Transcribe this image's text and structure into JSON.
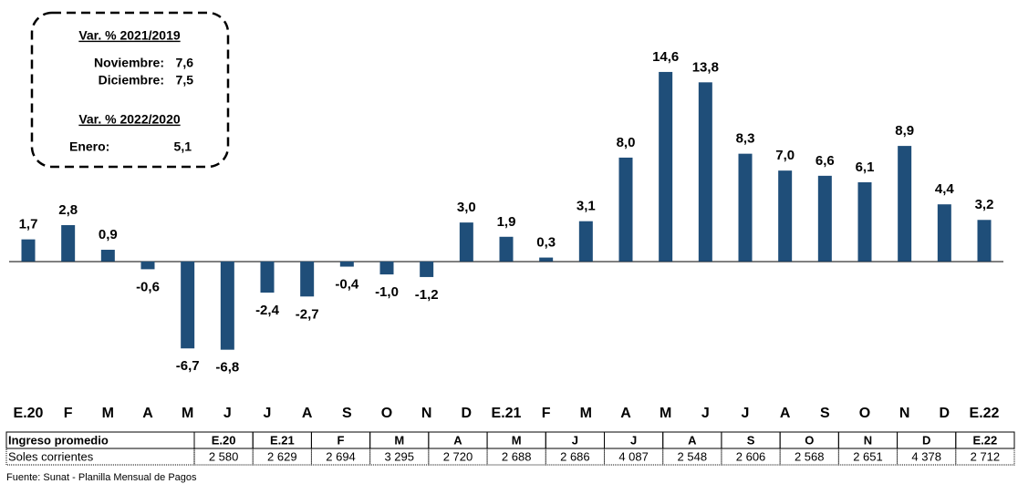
{
  "chart_data": {
    "type": "bar",
    "categories": [
      "E.20",
      "F",
      "M",
      "A",
      "M",
      "J",
      "J",
      "A",
      "S",
      "O",
      "N",
      "D",
      "E.21",
      "F",
      "M",
      "A",
      "M",
      "J",
      "J",
      "A",
      "S",
      "O",
      "N",
      "D",
      "E.22"
    ],
    "values": [
      1.7,
      2.8,
      0.9,
      -0.6,
      -6.7,
      -6.8,
      -2.4,
      -2.7,
      -0.4,
      -1.0,
      -1.2,
      3.0,
      1.9,
      0.3,
      3.1,
      8.0,
      14.6,
      13.8,
      8.3,
      7.0,
      6.6,
      6.1,
      8.9,
      4.4,
      3.2
    ],
    "value_labels": [
      "1,7",
      "2,8",
      "0,9",
      "-0,6",
      "-6,7",
      "-6,8",
      "-2,4",
      "-2,7",
      "-0,4",
      "-1,0",
      "-1,2",
      "3,0",
      "1,9",
      "0,3",
      "3,1",
      "8,0",
      "14,6",
      "13,8",
      "8,3",
      "7,0",
      "6,6",
      "6,1",
      "8,9",
      "4,4",
      "3,2"
    ],
    "color": "#1f4e79",
    "ylim": [
      -9,
      16
    ],
    "annotations": {
      "heading1": "Var. % 2021/2019",
      "lines1": [
        {
          "label": "Noviembre:",
          "value": "7,6"
        },
        {
          "label": "Diciembre:",
          "value": "7,5"
        }
      ],
      "heading2": "Var. % 2022/2020",
      "lines2": [
        {
          "label": "Enero:",
          "value": "5,1"
        }
      ]
    }
  },
  "table": {
    "rows": [
      [
        "Ingreso promedio",
        "E.20",
        "E.21",
        "F",
        "M",
        "A",
        "M",
        "J",
        "J",
        "A",
        "S",
        "O",
        "N",
        "D",
        "E.22"
      ],
      [
        "Soles corrientes",
        "2 580",
        "2 629",
        "2 694",
        "3 295",
        "2 720",
        "2 688",
        "2 686",
        "4 087",
        "2 548",
        "2 606",
        "2 568",
        "2 651",
        "4 378",
        "2 712"
      ]
    ]
  },
  "source": "Fuente: Sunat - Planilla Mensual de Pagos"
}
